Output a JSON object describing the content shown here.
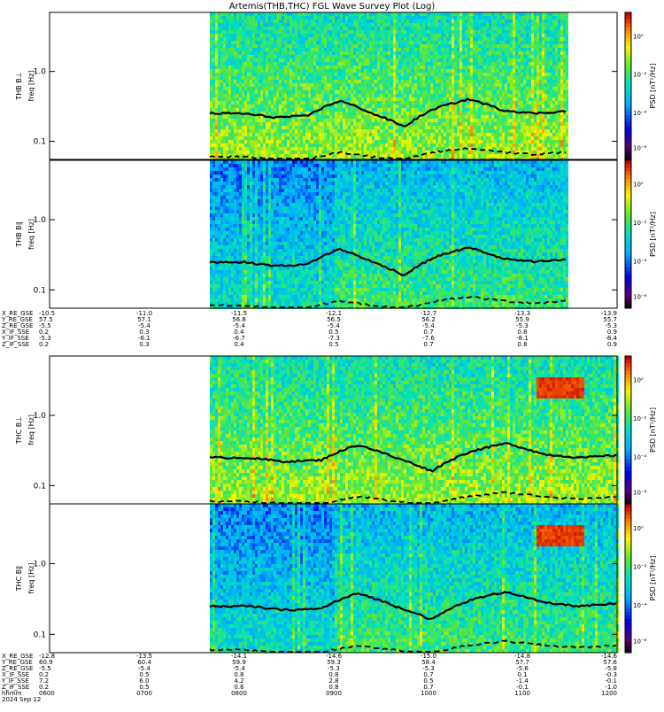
{
  "chart_data": {
    "type": "heatmap",
    "title": "Artemis(THB,THC) FGL Wave Survey Plot (Log)",
    "colorbar": {
      "label": "PSD [nT²/Hz]",
      "tick_labels": [
        "10⁰",
        "10⁻²",
        "10⁻⁴",
        "10⁻⁶"
      ],
      "colormap": "rainbow (black-violet-blue-cyan-green-yellow-red)"
    },
    "y_scale": "log",
    "y_tick_labels": [
      "1.0",
      "0.1"
    ],
    "time_ticks": [
      "0600",
      "0700",
      "0800",
      "0900",
      "1000",
      "1100",
      "1200"
    ],
    "panels": [
      {
        "ylabel1": "THB B⊥",
        "ylabel2": "freq [Hz]",
        "data_start": "0800"
      },
      {
        "ylabel1": "THB B∥",
        "ylabel2": "freq [Hz]",
        "data_start": "0800"
      },
      {
        "ylabel1": "THC B⊥",
        "ylabel2": "freq [Hz]",
        "data_start": "0800"
      },
      {
        "ylabel1": "THC B∥",
        "ylabel2": "freq [Hz]",
        "data_start": "0800"
      }
    ],
    "line_series": [
      {
        "style": "solid",
        "approx_freq_hz": [
          0.25,
          0.25,
          0.22,
          0.23,
          0.38,
          0.25,
          0.16,
          0.3,
          0.4,
          0.28,
          0.25,
          0.27
        ]
      },
      {
        "style": "dashed",
        "approx_freq_hz": [
          0.06,
          0.06,
          0.055,
          0.055,
          0.07,
          0.06,
          0.055,
          0.07,
          0.08,
          0.07,
          0.065,
          0.07
        ]
      }
    ],
    "ephemeris_tables": [
      {
        "rows": [
          {
            "label": "X_RE_GSE",
            "values": [
              "-10.5",
              "-11.0",
              "-11.5",
              "-12.1",
              "-12.7",
              "-13.3",
              "-13.9"
            ]
          },
          {
            "label": "Y_RE_GSE",
            "values": [
              "57.5",
              "57.1",
              "56.8",
              "56.5",
              "56.2",
              "55.9",
              "55.7"
            ]
          },
          {
            "label": "Z_RE_GSE",
            "values": [
              "-5.5",
              "-5.4",
              "-5.4",
              "-5.4",
              "-5.4",
              "-5.3",
              "-5.3"
            ]
          },
          {
            "label": "X_IF_SSE",
            "values": [
              "0.2",
              "0.3",
              "0.4",
              "0.5",
              "0.7",
              "0.8",
              "0.9"
            ]
          },
          {
            "label": "Y_IF_SSE",
            "values": [
              "-5.3",
              "-6.1",
              "-6.7",
              "-7.3",
              "-7.6",
              "-8.1",
              "-8.4"
            ]
          },
          {
            "label": "Z_IF_SSE",
            "values": [
              "0.2",
              "0.3",
              "0.4",
              "0.5",
              "0.7",
              "0.8",
              "0.9"
            ]
          }
        ]
      },
      {
        "rows": [
          {
            "label": "X_RE_GSE",
            "values": [
              "-12.8",
              "-13.5",
              "-14.1",
              "-14.6",
              "-15.0",
              "-14.8",
              "-14.6"
            ]
          },
          {
            "label": "Y_RE_GSE",
            "values": [
              "60.9",
              "60.4",
              "59.9",
              "59.3",
              "58.4",
              "57.7",
              "57.6"
            ]
          },
          {
            "label": "Z_RE_GSE",
            "values": [
              "-5.5",
              "-5.4",
              "-5.4",
              "-5.3",
              "-5.3",
              "-5.6",
              "-5.8"
            ]
          },
          {
            "label": "X_IF_SSE",
            "values": [
              "0.2",
              "0.5",
              "0.8",
              "0.8",
              "0.7",
              "0.1",
              "-0.3"
            ]
          },
          {
            "label": "Y_IF_SSE",
            "values": [
              "7.2",
              "6.0",
              "4.2",
              "2.8",
              "0.5",
              "-1.4",
              "-0.1"
            ]
          },
          {
            "label": "Z_IF_SSE",
            "values": [
              "0.2",
              "0.5",
              "0.6",
              "0.8",
              "0.7",
              "-0.1",
              "-1.0"
            ]
          },
          {
            "label": "hhmm",
            "values": [
              "0600",
              "0700",
              "0800",
              "0900",
              "1000",
              "1100",
              "1200"
            ]
          }
        ],
        "date_label": "2024 Sep 12"
      }
    ]
  }
}
